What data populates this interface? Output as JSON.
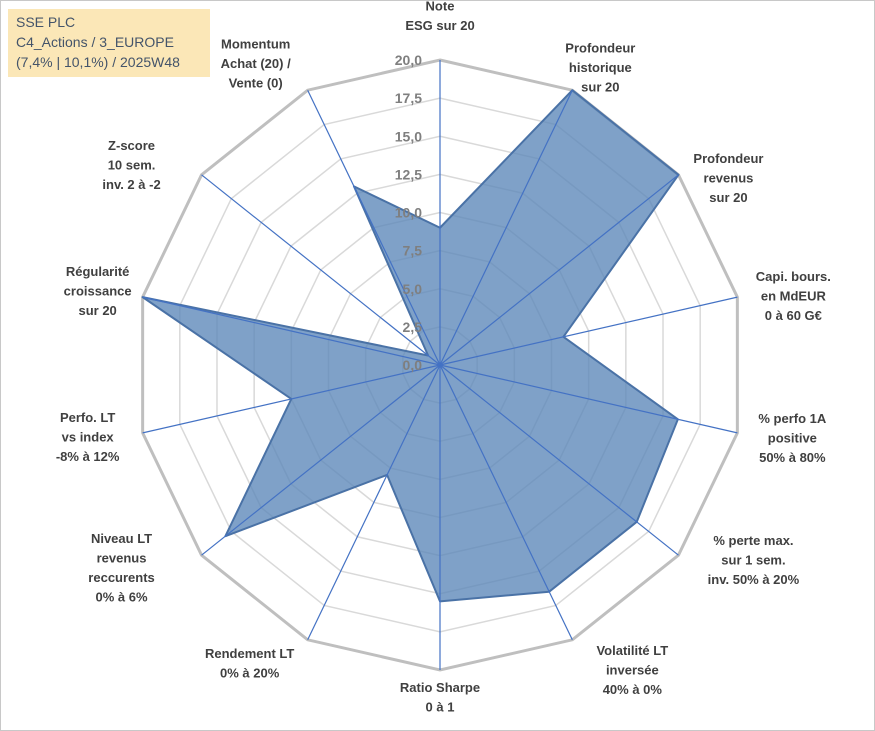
{
  "title_box": {
    "line1": "SSE PLC",
    "line2": "C4_Actions / 3_EUROPE",
    "line3": "(7,4% | 10,1%) / 2025W48"
  },
  "chart_data": {
    "type": "radar",
    "title": "SSE PLC",
    "range": [
      0,
      20
    ],
    "tick_step": 2.5,
    "tick_labels": [
      "0,0",
      "2,5",
      "5,0",
      "7,5",
      "10,0",
      "12,5",
      "15,0",
      "17,5",
      "20,0"
    ],
    "categories": [
      [
        "Note",
        "ESG sur 20"
      ],
      [
        "Profondeur",
        "historique",
        "sur 20"
      ],
      [
        "Profondeur",
        "revenus",
        "sur 20"
      ],
      [
        "Capi. bours.",
        "en MdEUR",
        "0 à 60 G€"
      ],
      [
        "% perfo 1A",
        "positive",
        "50% à 80%"
      ],
      [
        "% perte max.",
        "sur 1 sem.",
        "inv. 50% à 20%"
      ],
      [
        "Volatilité LT",
        "inversée",
        "40% à 0%"
      ],
      [
        "Ratio Sharpe",
        "0 à 1"
      ],
      [
        "Rendement LT",
        "0% à 20%"
      ],
      [
        "Niveau LT",
        "revenus",
        "reccurents",
        "0% à 6%"
      ],
      [
        "Perfo. LT",
        "vs index",
        "-8% à 12%"
      ],
      [
        "Régularité",
        "croissance",
        "sur 20"
      ],
      [
        "Z-score",
        "10 sem.",
        "inv. 2 à -2"
      ],
      [
        "Momentum",
        "Achat (20) /",
        "Vente (0)"
      ]
    ],
    "series": [
      {
        "name": "SSE PLC",
        "values": [
          9.0,
          20.0,
          20.0,
          8.3,
          16.0,
          16.5,
          16.5,
          15.5,
          8.0,
          18.0,
          10.0,
          20.0,
          1.0,
          13.0
        ]
      }
    ],
    "colors": {
      "fill": "#5b86b8",
      "fill_opacity": 0.78,
      "stroke": "#4a72a6",
      "spoke": "#4472c4",
      "grid_outer": "#bfbfbf",
      "grid_inner": "#d9d9d9"
    }
  }
}
